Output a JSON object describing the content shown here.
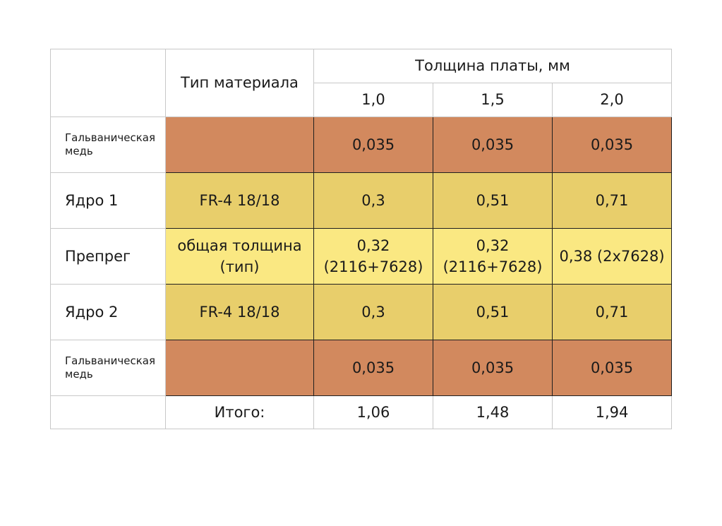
{
  "header": {
    "material_type": "Тип материала",
    "board_thickness": "Толщина платы, мм",
    "thicknesses": [
      "1,0",
      "1,5",
      "2,0"
    ]
  },
  "rows": [
    {
      "label": "Гальваническая медь",
      "material": "",
      "values": [
        "0,035",
        "0,035",
        "0,035"
      ],
      "color": "#d2895e"
    },
    {
      "label": "Ядро 1",
      "material": "FR-4 18/18",
      "values": [
        "0,3",
        "0,51",
        "0,71"
      ],
      "color": "#e8ce6b"
    },
    {
      "label": "Препрег",
      "material": "общая толщина (тип)",
      "values": [
        "0,32 (2116+7628)",
        "0,32 (2116+7628)",
        "0,38 (2x7628)"
      ],
      "color": "#fae882"
    },
    {
      "label": "Ядро 2",
      "material": "FR-4 18/18",
      "values": [
        "0,3",
        "0,51",
        "0,71"
      ],
      "color": "#e8ce6b"
    },
    {
      "label": "Гальваническая медь",
      "material": "",
      "values": [
        "0,035",
        "0,035",
        "0,035"
      ],
      "color": "#d2895e"
    }
  ],
  "total": {
    "label": "Итого:",
    "values": [
      "1,06",
      "1,48",
      "1,94"
    ]
  }
}
